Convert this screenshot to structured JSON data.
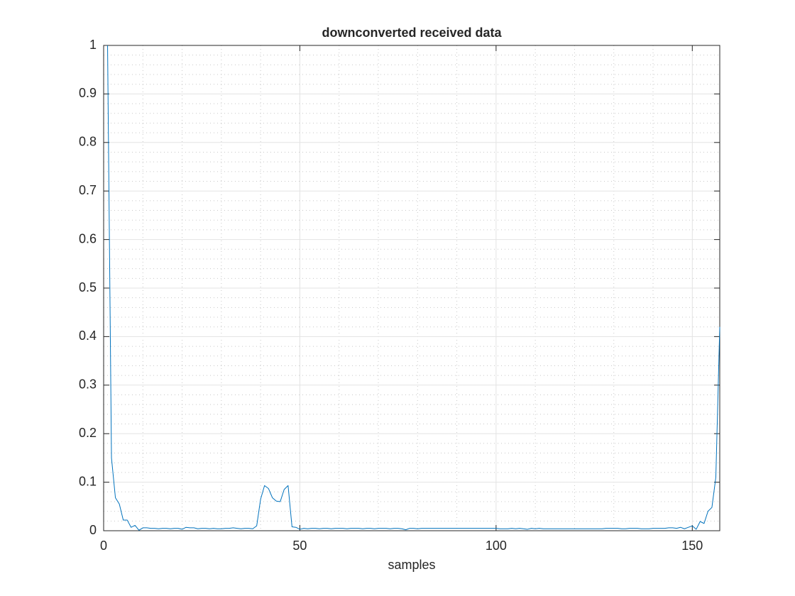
{
  "chart_data": {
    "type": "line",
    "title": "downconverted received data",
    "xlabel": "samples",
    "x": [
      1,
      2,
      3,
      4,
      5,
      6,
      7,
      8,
      9,
      10,
      11,
      12,
      13,
      14,
      15,
      16,
      17,
      18,
      19,
      20,
      21,
      22,
      23,
      24,
      25,
      26,
      27,
      28,
      29,
      30,
      31,
      32,
      33,
      34,
      35,
      36,
      37,
      38,
      39,
      40,
      41,
      42,
      43,
      44,
      45,
      46,
      47,
      48,
      49,
      50,
      51,
      52,
      53,
      54,
      55,
      56,
      57,
      58,
      59,
      60,
      61,
      62,
      63,
      64,
      65,
      66,
      67,
      68,
      69,
      70,
      71,
      72,
      73,
      74,
      75,
      76,
      77,
      78,
      79,
      80,
      81,
      82,
      83,
      84,
      85,
      86,
      87,
      88,
      89,
      90,
      91,
      92,
      93,
      94,
      95,
      96,
      97,
      98,
      99,
      100,
      101,
      102,
      103,
      104,
      105,
      106,
      107,
      108,
      109,
      110,
      111,
      112,
      113,
      114,
      115,
      116,
      117,
      118,
      119,
      120,
      121,
      122,
      123,
      124,
      125,
      126,
      127,
      128,
      129,
      130,
      131,
      132,
      133,
      134,
      135,
      136,
      137,
      138,
      139,
      140,
      141,
      142,
      143,
      144,
      145,
      146,
      147,
      148,
      149,
      150,
      151,
      152,
      153,
      154,
      155,
      156,
      157
    ],
    "values": [
      1.0,
      0.15,
      0.068,
      0.055,
      0.022,
      0.022,
      0.007,
      0.011,
      0.001,
      0.006,
      0.006,
      0.005,
      0.005,
      0.004,
      0.005,
      0.005,
      0.004,
      0.005,
      0.005,
      0.003,
      0.007,
      0.006,
      0.006,
      0.004,
      0.005,
      0.005,
      0.004,
      0.005,
      0.004,
      0.004,
      0.005,
      0.005,
      0.006,
      0.005,
      0.004,
      0.005,
      0.005,
      0.004,
      0.01,
      0.065,
      0.093,
      0.087,
      0.068,
      0.061,
      0.06,
      0.085,
      0.093,
      0.008,
      0.007,
      0.003,
      0.005,
      0.004,
      0.005,
      0.005,
      0.004,
      0.005,
      0.005,
      0.004,
      0.005,
      0.005,
      0.005,
      0.004,
      0.005,
      0.005,
      0.005,
      0.004,
      0.005,
      0.005,
      0.004,
      0.005,
      0.005,
      0.005,
      0.004,
      0.005,
      0.005,
      0.004,
      0.002,
      0.005,
      0.005,
      0.004,
      0.005,
      0.005,
      0.005,
      0.005,
      0.005,
      0.005,
      0.005,
      0.005,
      0.005,
      0.005,
      0.005,
      0.005,
      0.005,
      0.005,
      0.005,
      0.005,
      0.005,
      0.005,
      0.005,
      0.005,
      0.004,
      0.004,
      0.004,
      0.005,
      0.004,
      0.005,
      0.004,
      0.003,
      0.005,
      0.004,
      0.005,
      0.004,
      0.004,
      0.004,
      0.004,
      0.004,
      0.004,
      0.004,
      0.004,
      0.004,
      0.004,
      0.004,
      0.004,
      0.004,
      0.004,
      0.004,
      0.004,
      0.005,
      0.005,
      0.005,
      0.005,
      0.004,
      0.004,
      0.005,
      0.005,
      0.005,
      0.004,
      0.004,
      0.004,
      0.005,
      0.005,
      0.005,
      0.005,
      0.006,
      0.006,
      0.005,
      0.007,
      0.004,
      0.007,
      0.01,
      0.003,
      0.019,
      0.015,
      0.04,
      0.048,
      0.11,
      0.42
    ],
    "color": "#0072bd",
    "xlim": [
      0,
      157
    ],
    "ylim": [
      0,
      1
    ],
    "xticks": [
      0,
      50,
      100,
      150
    ],
    "yticks": [
      0,
      0.1,
      0.2,
      0.3,
      0.4,
      0.5,
      0.6,
      0.7,
      0.8,
      0.9,
      1
    ],
    "xminorticks": [
      10,
      20,
      30,
      40,
      60,
      70,
      80,
      90,
      110,
      120,
      130,
      140
    ],
    "yminorticks": [
      0.02,
      0.04,
      0.06,
      0.08,
      0.12,
      0.14,
      0.16,
      0.18,
      0.22,
      0.24,
      0.26,
      0.28,
      0.32,
      0.34,
      0.36,
      0.38,
      0.42,
      0.44,
      0.46,
      0.48,
      0.52,
      0.54,
      0.56,
      0.58,
      0.62,
      0.64,
      0.66,
      0.68,
      0.72,
      0.74,
      0.76,
      0.78,
      0.82,
      0.84,
      0.86,
      0.88,
      0.92,
      0.94,
      0.96,
      0.98
    ],
    "grid": true,
    "minor_grid": true
  }
}
